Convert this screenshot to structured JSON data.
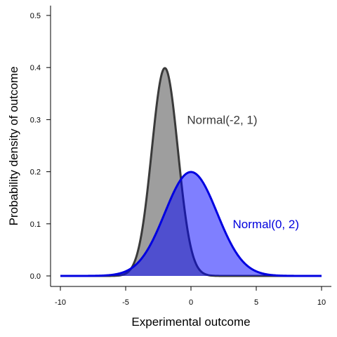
{
  "chart_data": {
    "type": "area",
    "xlabel": "Experimental outcome",
    "ylabel": "Probability density of outcome",
    "xlim": [
      -10,
      10
    ],
    "ylim": [
      0,
      0.5
    ],
    "x_ticks": [
      "-10",
      "-5",
      "0",
      "5",
      "10"
    ],
    "y_ticks": [
      "0.0",
      "0.1",
      "0.2",
      "0.3",
      "0.4",
      "0.5"
    ],
    "grid": false,
    "legend": "none",
    "series": [
      {
        "distribution": "normal",
        "mean": -2,
        "sd": 1,
        "label": "Normal(-2, 1)",
        "label_at": [
          -0.3,
          0.3
        ],
        "fill_color": "#9e9e9e",
        "line_color": "#3a3a3a",
        "text_color": "#3a3a3a"
      },
      {
        "distribution": "normal",
        "mean": 0,
        "sd": 2,
        "label": "Normal(0, 2)",
        "label_at": [
          3.2,
          0.1
        ],
        "fill_color": "#0000ff",
        "line_color": "#0000e0",
        "text_color": "#0000dd"
      }
    ]
  }
}
